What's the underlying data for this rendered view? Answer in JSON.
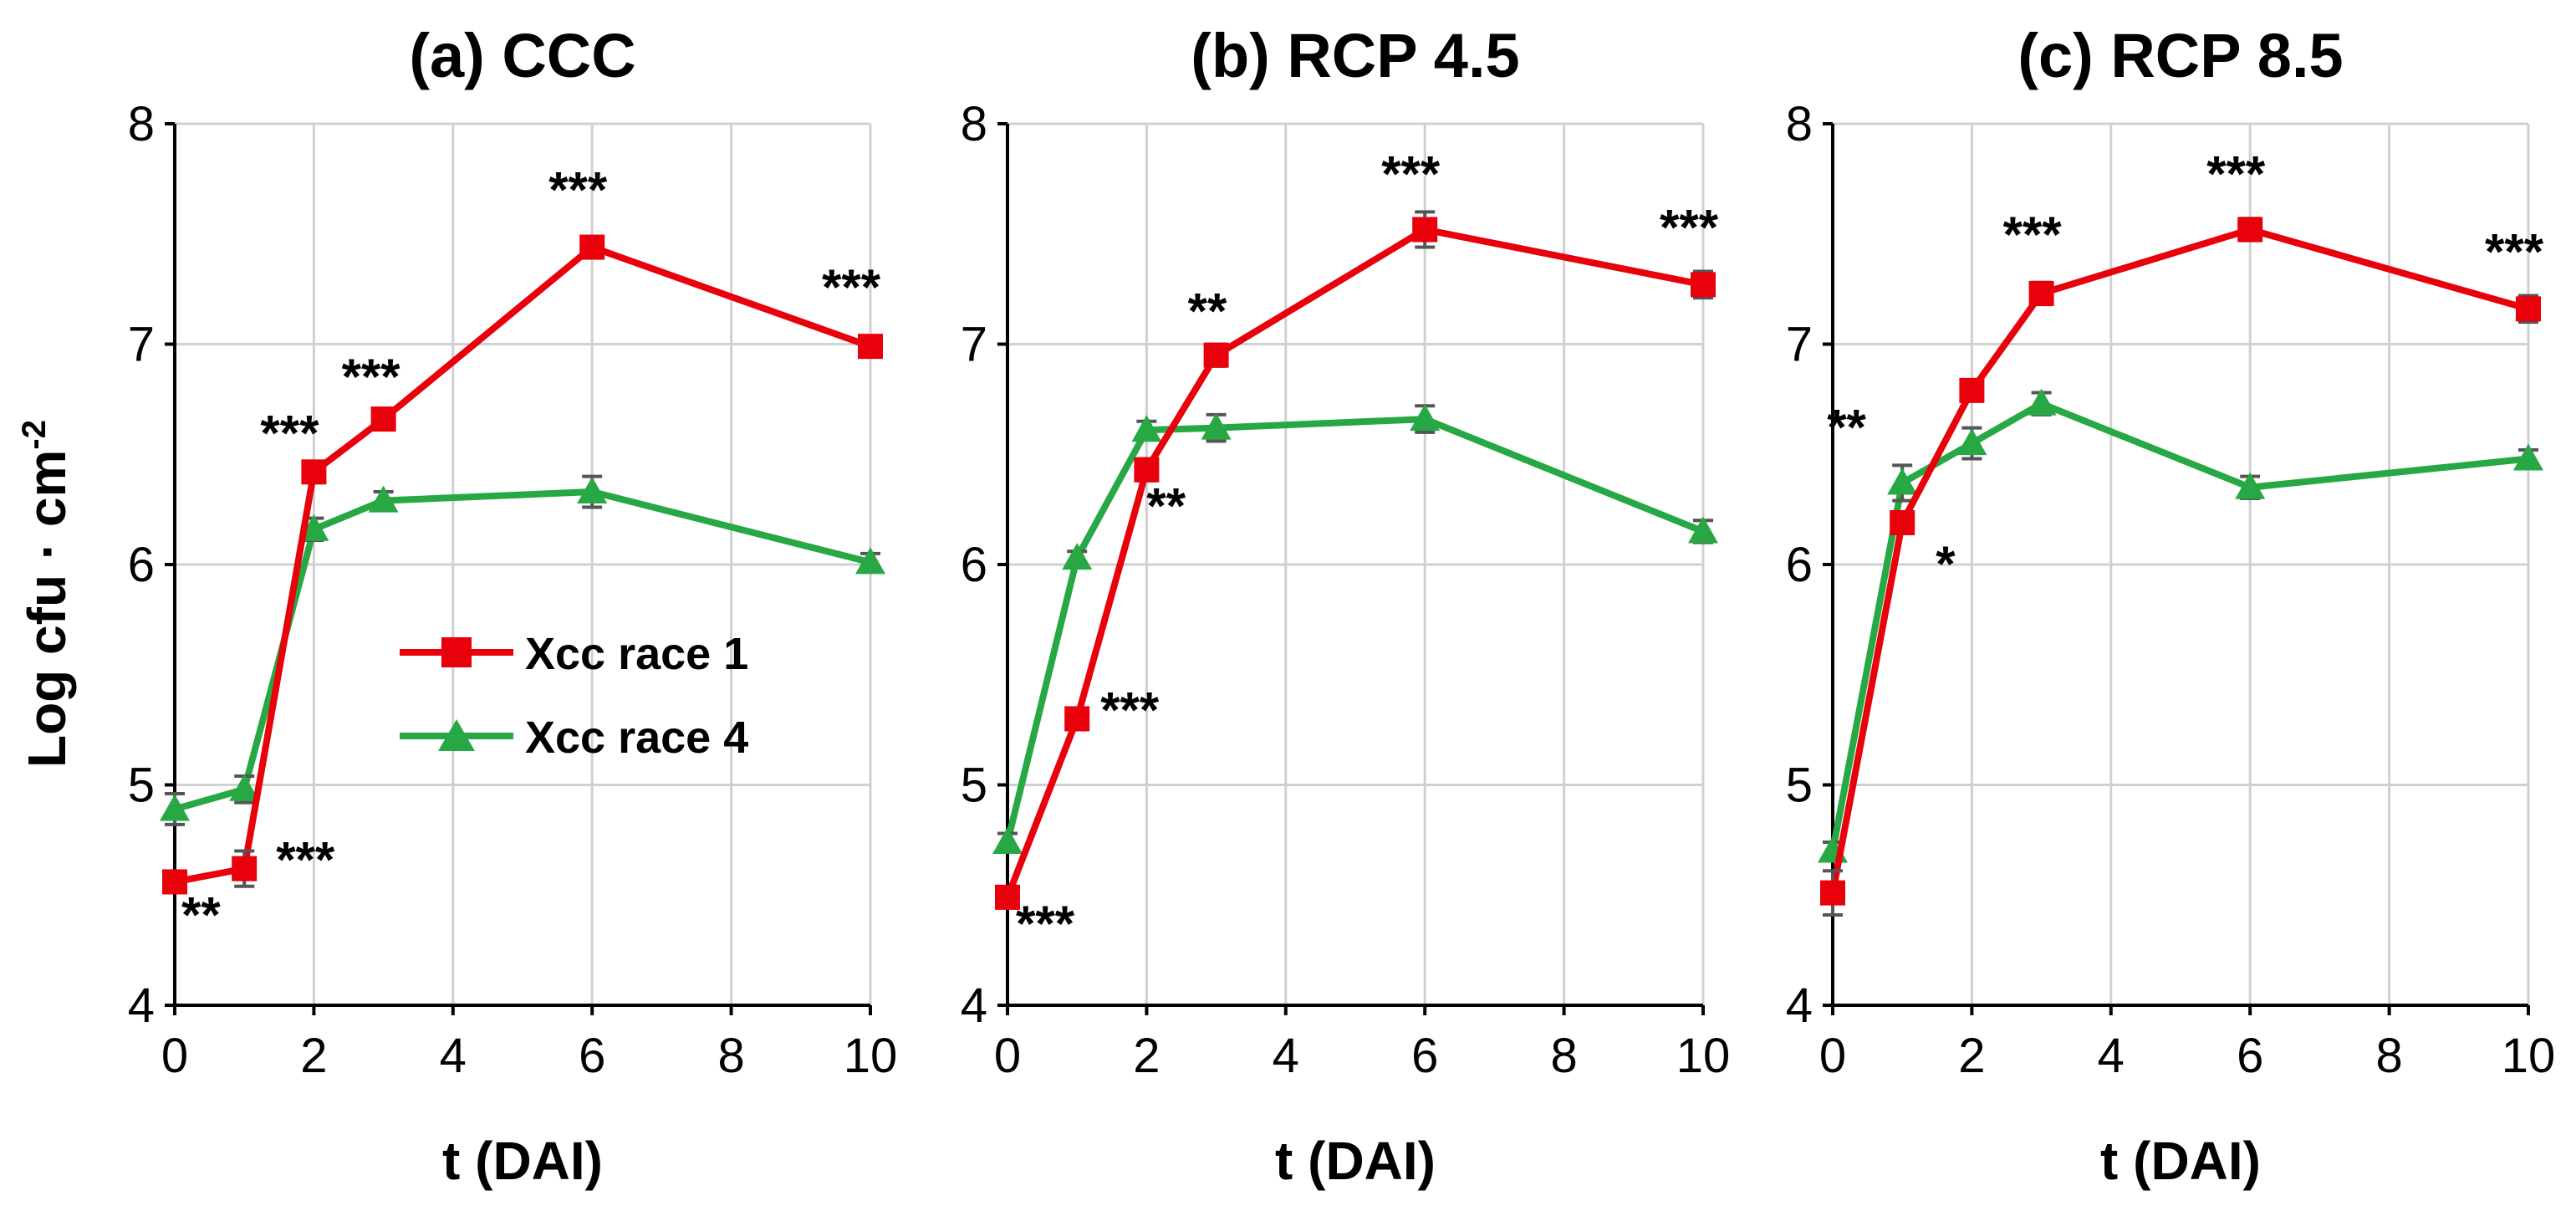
{
  "figure": {
    "ylabel_main": "Log cfu · cm",
    "ylabel_sup": "-2"
  },
  "legend": {
    "items": [
      {
        "label": "Xcc race 1",
        "marker": "square",
        "color": "#e8000b"
      },
      {
        "label": "Xcc race 4",
        "marker": "triangle",
        "color": "#27a844"
      }
    ]
  },
  "chart_data": [
    {
      "type": "line",
      "title": "(a) CCC",
      "xlabel": "t (DAI)",
      "ylabel": "Log cfu · cm-2",
      "xlim": [
        0,
        10
      ],
      "ylim": [
        4,
        8
      ],
      "xticks": [
        0,
        2,
        4,
        6,
        8,
        10
      ],
      "yticks": [
        4,
        5,
        6,
        7,
        8
      ],
      "grid": true,
      "legend_position": "center",
      "x": [
        0,
        1,
        2,
        3,
        6,
        10
      ],
      "series": [
        {
          "name": "Xcc race 1",
          "color": "#e8000b",
          "marker": "square",
          "values": [
            4.56,
            4.62,
            6.42,
            6.66,
            7.44,
            6.99
          ],
          "errors": [
            0.03,
            0.08,
            0.03,
            0.04,
            0.03,
            0.03
          ]
        },
        {
          "name": "Xcc race 4",
          "color": "#27a844",
          "marker": "triangle",
          "values": [
            4.89,
            4.98,
            6.16,
            6.29,
            6.33,
            6.01
          ],
          "errors": [
            0.07,
            0.06,
            0.05,
            0.04,
            0.07,
            0.04
          ]
        }
      ],
      "annotations": [
        {
          "x": 0,
          "y": 4.56,
          "text": "**"
        },
        {
          "x": 1,
          "y": 4.62,
          "text": "***"
        },
        {
          "x": 2,
          "y": 6.42,
          "text": "***"
        },
        {
          "x": 3,
          "y": 6.66,
          "text": "***"
        },
        {
          "x": 6,
          "y": 7.44,
          "text": "***"
        },
        {
          "x": 10,
          "y": 6.99,
          "text": "***"
        }
      ]
    },
    {
      "type": "line",
      "title": "(b) RCP 4.5",
      "xlabel": "t (DAI)",
      "ylabel": "",
      "xlim": [
        0,
        10
      ],
      "ylim": [
        4,
        8
      ],
      "xticks": [
        0,
        2,
        4,
        6,
        8,
        10
      ],
      "yticks": [
        4,
        5,
        6,
        7,
        8
      ],
      "grid": true,
      "x": [
        0,
        1,
        2,
        3,
        6,
        10
      ],
      "series": [
        {
          "name": "Xcc race 1",
          "color": "#e8000b",
          "marker": "square",
          "values": [
            4.49,
            5.3,
            6.43,
            6.95,
            7.52,
            7.27
          ],
          "errors": [
            0.03,
            0.04,
            0.05,
            0.05,
            0.08,
            0.06
          ]
        },
        {
          "name": "Xcc race 4",
          "color": "#27a844",
          "marker": "triangle",
          "values": [
            4.74,
            6.03,
            6.61,
            6.62,
            6.66,
            6.15
          ],
          "errors": [
            0.04,
            0.03,
            0.04,
            0.06,
            0.06,
            0.05
          ]
        }
      ],
      "annotations": [
        {
          "x": 0,
          "y": 4.49,
          "text": "***"
        },
        {
          "x": 1,
          "y": 5.3,
          "text": "***"
        },
        {
          "x": 2,
          "y": 6.43,
          "text": "**"
        },
        {
          "x": 3,
          "y": 6.95,
          "text": "**"
        },
        {
          "x": 6,
          "y": 7.52,
          "text": "***"
        },
        {
          "x": 10,
          "y": 7.27,
          "text": "***"
        }
      ]
    },
    {
      "type": "line",
      "title": "(c) RCP 8.5",
      "xlabel": "t (DAI)",
      "ylabel": "",
      "xlim": [
        0,
        10
      ],
      "ylim": [
        4,
        8
      ],
      "xticks": [
        0,
        2,
        4,
        6,
        8,
        10
      ],
      "yticks": [
        4,
        5,
        6,
        7,
        8
      ],
      "grid": true,
      "x": [
        0,
        1,
        2,
        3,
        6,
        10
      ],
      "series": [
        {
          "name": "Xcc race 1",
          "color": "#e8000b",
          "marker": "square",
          "values": [
            4.51,
            6.19,
            6.79,
            7.23,
            7.52,
            7.16
          ],
          "errors": [
            0.1,
            0.04,
            0.03,
            0.05,
            0.05,
            0.06
          ]
        },
        {
          "name": "Xcc race 4",
          "color": "#27a844",
          "marker": "triangle",
          "values": [
            4.7,
            6.37,
            6.55,
            6.73,
            6.35,
            6.48
          ],
          "errors": [
            0.04,
            0.08,
            0.07,
            0.05,
            0.05,
            0.04
          ]
        }
      ],
      "annotations": [
        {
          "x": 1,
          "y": 6.37,
          "text": "**"
        },
        {
          "x": 1,
          "y": 6.19,
          "text": "*"
        },
        {
          "x": 3,
          "y": 7.23,
          "text": "***"
        },
        {
          "x": 6,
          "y": 7.52,
          "text": "***"
        },
        {
          "x": 10,
          "y": 7.16,
          "text": "***"
        }
      ]
    }
  ]
}
